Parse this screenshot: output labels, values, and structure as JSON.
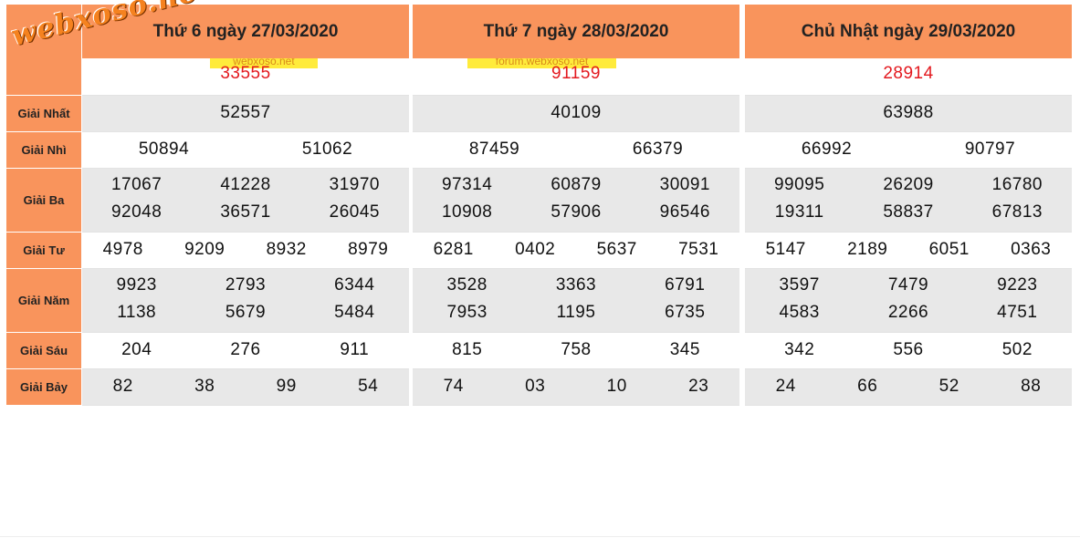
{
  "labels": [
    "Giải Nhất",
    "Giải Nhì",
    "Giải Ba",
    "Giải Tư",
    "Giải Năm",
    "Giải Sáu",
    "Giải Bảy"
  ],
  "watermark": "webxoso.net",
  "panels": [
    {
      "header": "Thứ 6 ngày 27/03/2020",
      "tag": "webxoso.net",
      "special": "33555",
      "first": "52557",
      "second": [
        "50894",
        "51062"
      ],
      "third": [
        [
          "17067",
          "41228",
          "31970"
        ],
        [
          "92048",
          "36571",
          "26045"
        ]
      ],
      "fourth": [
        "4978",
        "9209",
        "8932",
        "8979"
      ],
      "fifth": [
        [
          "9923",
          "2793",
          "6344"
        ],
        [
          "1138",
          "5679",
          "5484"
        ]
      ],
      "sixth": [
        "204",
        "276",
        "911"
      ],
      "seventh": [
        "82",
        "38",
        "99",
        "54"
      ]
    },
    {
      "header": "Thứ 7 ngày 28/03/2020",
      "tag": "forum.webxoso.net",
      "special": "91159",
      "first": "40109",
      "second": [
        "87459",
        "66379"
      ],
      "third": [
        [
          "97314",
          "60879",
          "30091"
        ],
        [
          "10908",
          "57906",
          "96546"
        ]
      ],
      "fourth": [
        "6281",
        "0402",
        "5637",
        "7531"
      ],
      "fifth": [
        [
          "3528",
          "3363",
          "6791"
        ],
        [
          "7953",
          "1195",
          "6735"
        ]
      ],
      "sixth": [
        "815",
        "758",
        "345"
      ],
      "seventh": [
        "74",
        "03",
        "10",
        "23"
      ]
    },
    {
      "header": "Chủ Nhật ngày 29/03/2020",
      "tag": "",
      "special": "28914",
      "first": "63988",
      "second": [
        "66992",
        "90797"
      ],
      "third": [
        [
          "99095",
          "26209",
          "16780"
        ],
        [
          "19311",
          "58837",
          "67813"
        ]
      ],
      "fourth": [
        "5147",
        "2189",
        "6051",
        "0363"
      ],
      "fifth": [
        [
          "3597",
          "7479",
          "9223"
        ],
        [
          "4583",
          "2266",
          "4751"
        ]
      ],
      "sixth": [
        "342",
        "556",
        "502"
      ],
      "seventh": [
        "24",
        "66",
        "52",
        "88"
      ]
    }
  ]
}
